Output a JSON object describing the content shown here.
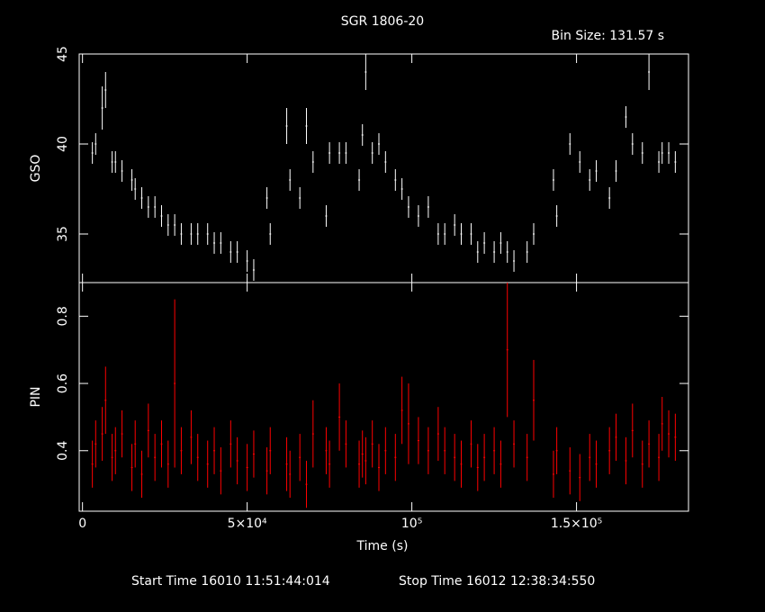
{
  "chart_data": [
    {
      "type": "errorbar",
      "title": "SGR 1806-20",
      "subtitle": "Bin Size: 131.57 s",
      "ylabel": "GSO",
      "xlim": [
        -1000,
        184000
      ],
      "ylim": [
        32.3,
        45
      ],
      "yticks": [
        35,
        40,
        45
      ],
      "series": [
        {
          "name": "GSO",
          "color": "#ffffff",
          "x": [
            3000,
            4000,
            6000,
            7000,
            9000,
            10000,
            12000,
            15000,
            16000,
            18000,
            20000,
            22000,
            24000,
            26000,
            28000,
            30000,
            33000,
            35000,
            38000,
            40000,
            42000,
            45000,
            47000,
            50000,
            52000,
            56000,
            57000,
            62000,
            63000,
            66000,
            68000,
            70000,
            74000,
            75000,
            78000,
            80000,
            84000,
            85000,
            86000,
            88000,
            90000,
            92000,
            95000,
            97000,
            99000,
            102000,
            105000,
            108000,
            110000,
            113000,
            115000,
            118000,
            120000,
            122000,
            125000,
            127000,
            129000,
            131000,
            135000,
            137000,
            143000,
            144000,
            148000,
            151000,
            154000,
            156000,
            160000,
            162000,
            165000,
            167000,
            170000,
            172000,
            175000,
            176000,
            178000,
            180000
          ],
          "values": [
            39.5,
            40,
            42,
            43,
            39,
            39,
            38.5,
            38,
            37.5,
            37,
            36.5,
            36.5,
            36,
            35.5,
            35.5,
            35,
            35,
            35,
            35,
            34.5,
            34.5,
            34,
            34,
            33.5,
            33,
            37,
            35,
            41,
            38,
            37,
            41,
            39,
            36,
            39.5,
            39.5,
            39.5,
            38,
            40.5,
            44,
            39.5,
            40,
            39,
            38,
            37.5,
            36.5,
            36,
            36.5,
            35,
            35,
            35.5,
            35,
            35,
            34,
            34.5,
            34,
            34.5,
            34,
            33.5,
            34,
            35,
            38,
            36,
            40,
            39,
            38,
            38.5,
            37,
            38.5,
            41.5,
            40,
            39.5,
            44,
            39,
            39.5,
            39.5,
            39
          ],
          "errors": [
            0.6,
            0.6,
            1.2,
            1,
            0.6,
            0.6,
            0.6,
            0.6,
            0.6,
            0.6,
            0.6,
            0.6,
            0.6,
            0.6,
            0.6,
            0.6,
            0.6,
            0.6,
            0.6,
            0.6,
            0.6,
            0.6,
            0.6,
            0.6,
            0.6,
            0.6,
            0.6,
            1,
            0.6,
            0.6,
            1,
            0.6,
            0.6,
            0.6,
            0.6,
            0.6,
            0.6,
            0.6,
            1,
            0.6,
            0.6,
            0.6,
            0.6,
            0.6,
            0.6,
            0.6,
            0.6,
            0.6,
            0.6,
            0.6,
            0.6,
            0.6,
            0.6,
            0.6,
            0.6,
            0.6,
            0.6,
            0.6,
            0.6,
            0.6,
            0.6,
            0.6,
            0.6,
            0.6,
            0.6,
            0.6,
            0.6,
            0.6,
            0.6,
            0.6,
            0.6,
            1,
            0.6,
            0.6,
            0.6,
            0.6
          ]
        }
      ]
    },
    {
      "type": "errorbar",
      "ylabel": "PIN",
      "xlabel": "Time (s)",
      "xlim": [
        -1000,
        184000
      ],
      "xticks": [
        0,
        {
          "value": 50000,
          "label": "5×10⁴"
        },
        {
          "value": 100000,
          "label": "10⁵"
        },
        {
          "value": 150000,
          "label": "1.5×10⁵"
        }
      ],
      "ylim": [
        0.22,
        0.9
      ],
      "yticks": [
        0.4,
        0.6,
        0.8
      ],
      "series": [
        {
          "name": "PIN",
          "color": "#ff0000",
          "x": [
            3000,
            4000,
            6000,
            7000,
            9000,
            10000,
            12000,
            15000,
            16000,
            18000,
            20000,
            22000,
            24000,
            26000,
            28000,
            30000,
            33000,
            35000,
            38000,
            40000,
            42000,
            45000,
            47000,
            50000,
            52000,
            56000,
            57000,
            62000,
            63000,
            66000,
            68000,
            70000,
            74000,
            75000,
            78000,
            80000,
            84000,
            85000,
            86000,
            88000,
            90000,
            92000,
            95000,
            97000,
            99000,
            102000,
            105000,
            108000,
            110000,
            113000,
            115000,
            118000,
            120000,
            122000,
            125000,
            127000,
            129000,
            131000,
            135000,
            137000,
            143000,
            144000,
            148000,
            151000,
            154000,
            156000,
            160000,
            162000,
            165000,
            167000,
            170000,
            172000,
            175000,
            176000,
            178000,
            180000
          ],
          "values": [
            0.36,
            0.42,
            0.45,
            0.55,
            0.38,
            0.4,
            0.45,
            0.35,
            0.42,
            0.33,
            0.46,
            0.38,
            0.42,
            0.36,
            0.6,
            0.4,
            0.44,
            0.38,
            0.36,
            0.4,
            0.34,
            0.42,
            0.37,
            0.35,
            0.39,
            0.34,
            0.4,
            0.36,
            0.33,
            0.38,
            0.3,
            0.45,
            0.4,
            0.36,
            0.5,
            0.42,
            0.36,
            0.39,
            0.37,
            0.42,
            0.35,
            0.4,
            0.38,
            0.52,
            0.48,
            0.43,
            0.4,
            0.45,
            0.4,
            0.38,
            0.36,
            0.42,
            0.35,
            0.38,
            0.4,
            0.36,
            0.7,
            0.42,
            0.38,
            0.55,
            0.33,
            0.4,
            0.34,
            0.32,
            0.38,
            0.36,
            0.4,
            0.44,
            0.37,
            0.46,
            0.36,
            0.42,
            0.38,
            0.48,
            0.45,
            0.44
          ],
          "errors": [
            0.07,
            0.07,
            0.08,
            0.1,
            0.07,
            0.07,
            0.07,
            0.07,
            0.07,
            0.07,
            0.08,
            0.07,
            0.07,
            0.07,
            0.25,
            0.07,
            0.08,
            0.07,
            0.07,
            0.07,
            0.07,
            0.07,
            0.07,
            0.07,
            0.07,
            0.07,
            0.07,
            0.08,
            0.07,
            0.07,
            0.07,
            0.1,
            0.07,
            0.07,
            0.1,
            0.07,
            0.07,
            0.07,
            0.07,
            0.07,
            0.07,
            0.07,
            0.07,
            0.1,
            0.12,
            0.07,
            0.07,
            0.08,
            0.07,
            0.07,
            0.07,
            0.07,
            0.07,
            0.07,
            0.07,
            0.07,
            0.2,
            0.07,
            0.07,
            0.12,
            0.07,
            0.07,
            0.07,
            0.07,
            0.07,
            0.07,
            0.07,
            0.07,
            0.07,
            0.08,
            0.07,
            0.07,
            0.07,
            0.08,
            0.07,
            0.07
          ]
        }
      ]
    }
  ],
  "start_time": "Start Time 16010 11:51:44:014",
  "stop_time": "Stop Time 16012 12:38:34:550"
}
